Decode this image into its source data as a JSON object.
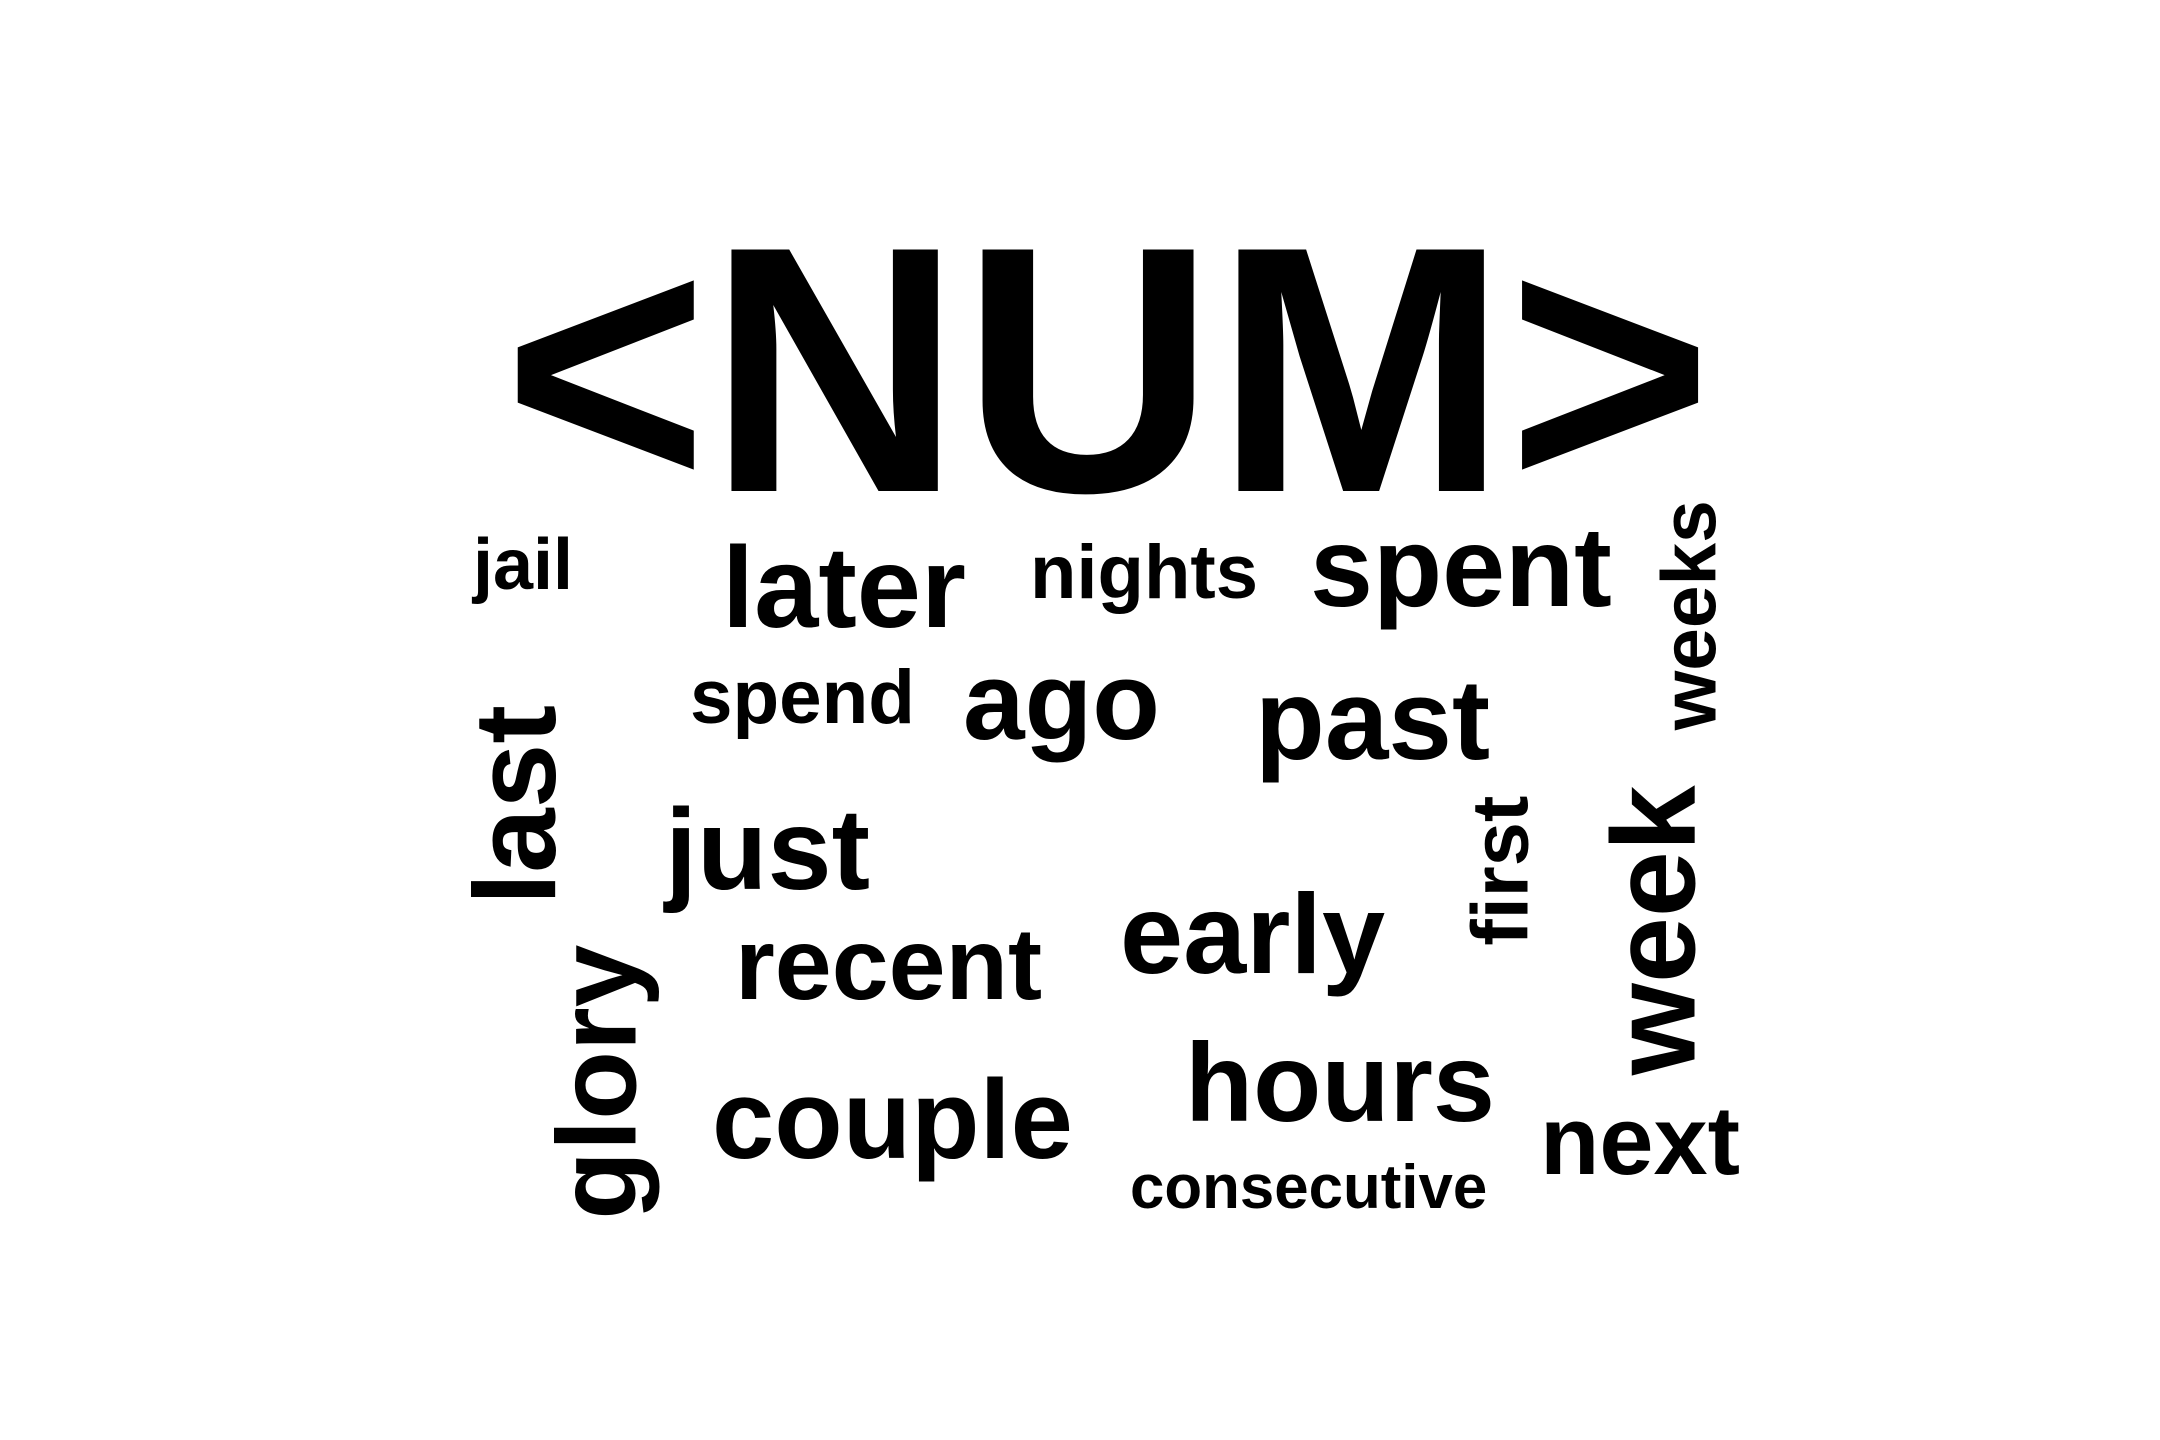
{
  "word_cloud": {
    "text_color": "#000000",
    "background_color": "#ffffff",
    "words": [
      {
        "text": "<NUM>",
        "rotation": 0
      },
      {
        "text": "jail",
        "rotation": 0
      },
      {
        "text": "later",
        "rotation": 0
      },
      {
        "text": "nights",
        "rotation": 0
      },
      {
        "text": "spent",
        "rotation": 0
      },
      {
        "text": "weeks",
        "rotation": -90
      },
      {
        "text": "spend",
        "rotation": 0
      },
      {
        "text": "ago",
        "rotation": 0
      },
      {
        "text": "past",
        "rotation": 0
      },
      {
        "text": "last",
        "rotation": -90
      },
      {
        "text": "just",
        "rotation": 0
      },
      {
        "text": "first",
        "rotation": -90
      },
      {
        "text": "week",
        "rotation": -90
      },
      {
        "text": "early",
        "rotation": 0
      },
      {
        "text": "recent",
        "rotation": 0
      },
      {
        "text": "glory",
        "rotation": -90
      },
      {
        "text": "hours",
        "rotation": 0
      },
      {
        "text": "couple",
        "rotation": 0
      },
      {
        "text": "next",
        "rotation": 0
      },
      {
        "text": "consecutive",
        "rotation": 0
      }
    ]
  }
}
